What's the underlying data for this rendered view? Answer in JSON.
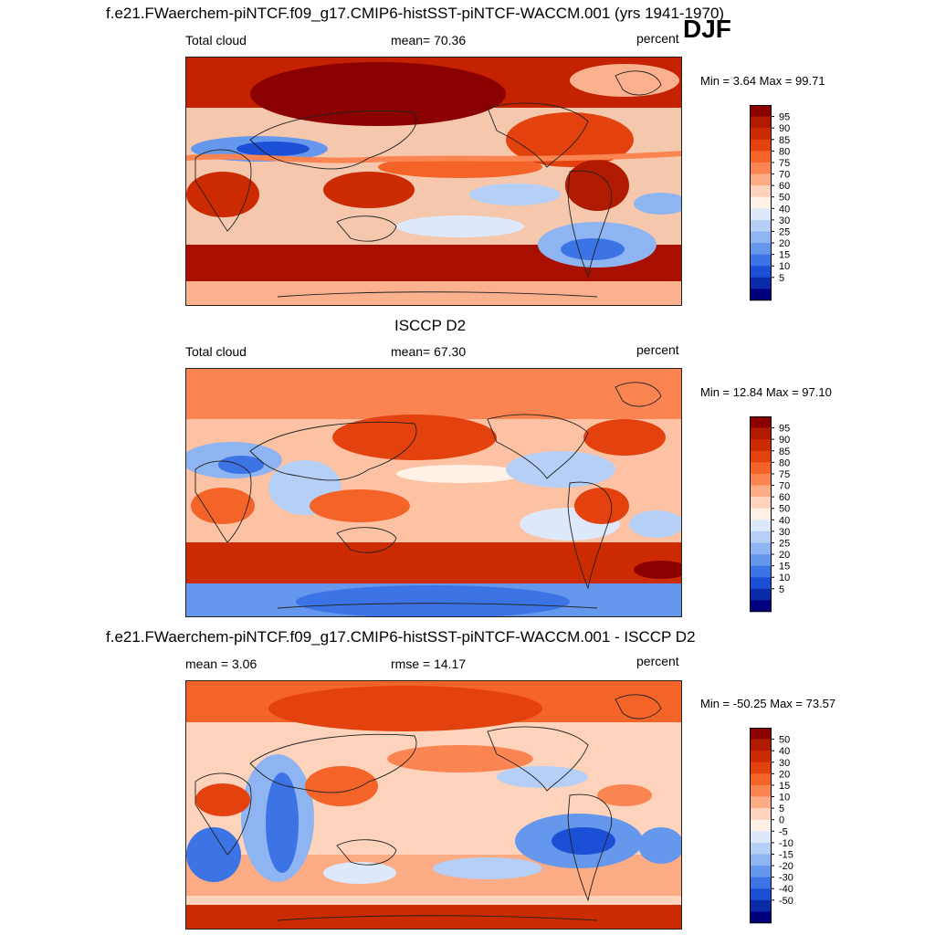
{
  "main_title": "f.e21.FWaerchem-piNTCF.f09_g17.CMIP6-histSST-piNTCF-WACCM.001 (yrs 1941-1970)",
  "season": "DJF",
  "panels": [
    {
      "title": "",
      "left_label": "Total cloud",
      "center_label": "mean=  70.36",
      "units": "percent",
      "minmax": "Min =   3.64 Max =  99.71",
      "colorbar": {
        "labels": [
          "95",
          "90",
          "85",
          "80",
          "75",
          "70",
          "60",
          "50",
          "40",
          "30",
          "25",
          "20",
          "15",
          "10",
          "5"
        ],
        "colors": [
          "#8b0000",
          "#b01a00",
          "#cc2a00",
          "#e3410e",
          "#f46327",
          "#fb8552",
          "#fcac85",
          "#fdd3bb",
          "#fff1e5",
          "#dde9fb",
          "#b5cff7",
          "#8eb5f2",
          "#6597ec",
          "#3c74e5",
          "#1b4fd6",
          "#0a2aa8",
          "#00007d"
        ]
      }
    },
    {
      "title": "ISCCP D2",
      "left_label": "Total cloud",
      "center_label": "mean=  67.30",
      "units": "percent",
      "minmax": "Min =  12.84 Max =  97.10",
      "colorbar": {
        "labels": [
          "95",
          "90",
          "85",
          "80",
          "75",
          "70",
          "60",
          "50",
          "40",
          "30",
          "25",
          "20",
          "15",
          "10",
          "5"
        ],
        "colors": [
          "#8b0000",
          "#b01a00",
          "#cc2a00",
          "#e3410e",
          "#f46327",
          "#fb8552",
          "#fcac85",
          "#fdd3bb",
          "#fff1e5",
          "#dde9fb",
          "#b5cff7",
          "#8eb5f2",
          "#6597ec",
          "#3c74e5",
          "#1b4fd6",
          "#0a2aa8",
          "#00007d"
        ]
      }
    },
    {
      "title": "f.e21.FWaerchem-piNTCF.f09_g17.CMIP6-histSST-piNTCF-WACCM.001 - ISCCP D2",
      "left_label": "mean =   3.06",
      "center_label": "rmse =  14.17",
      "units": "percent",
      "minmax": "Min = -50.25 Max =  73.57",
      "colorbar": {
        "labels": [
          "50",
          "40",
          "30",
          "20",
          "15",
          "10",
          "5",
          "0",
          "-5",
          "-10",
          "-15",
          "-20",
          "-30",
          "-40",
          "-50"
        ],
        "colors": [
          "#8b0000",
          "#b01a00",
          "#cc2a00",
          "#e3410e",
          "#f46327",
          "#fb8552",
          "#fcac85",
          "#fdd3bb",
          "#fff1e5",
          "#dde9fb",
          "#b5cff7",
          "#8eb5f2",
          "#6597ec",
          "#3c74e5",
          "#1b4fd6",
          "#0a2aa8",
          "#00007d"
        ]
      }
    }
  ]
}
